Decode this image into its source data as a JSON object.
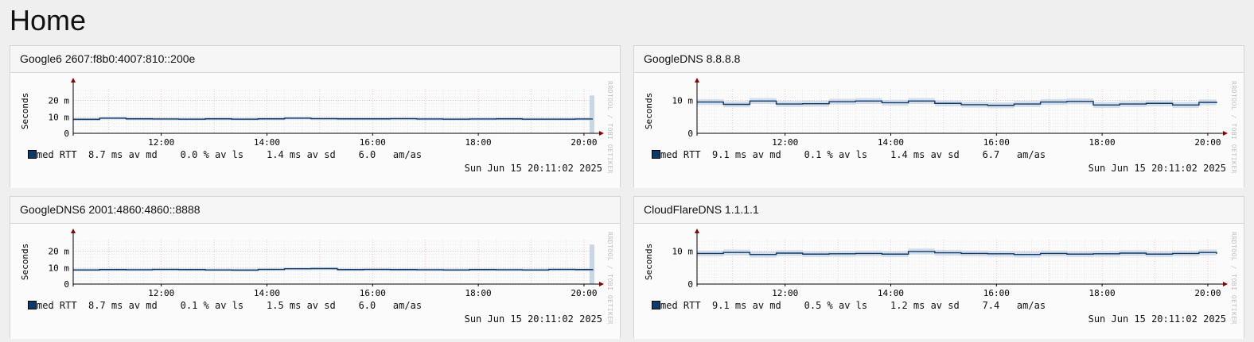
{
  "page": {
    "title": "Home"
  },
  "watermark": "RRDTOOL / TOBI OETIKER",
  "colors": {
    "median": "#0c3a6b",
    "smoke": "#c8d6e6",
    "grid_major": "#f2a6a6",
    "grid_minor": "#dddddd",
    "axis": "#000000",
    "arrow": "#8b0000"
  },
  "chart_data": [
    {
      "type": "line",
      "title": "Google6 2607:f8b0:4007:810::200e",
      "ylabel": "Seconds",
      "ylim": [
        0,
        27
      ],
      "y_ticks": [
        0,
        10,
        20
      ],
      "y_tick_labels": [
        "0",
        "10 m",
        "20 m"
      ],
      "x_range": [
        "10:20",
        "20:10"
      ],
      "x_ticks": [
        "12:00",
        "14:00",
        "16:00",
        "18:00",
        "20:00"
      ],
      "series": [
        {
          "name": "med RTT",
          "x": [
            "10:20",
            "10:50",
            "11:20",
            "11:50",
            "12:20",
            "12:50",
            "13:20",
            "13:50",
            "14:20",
            "14:50",
            "15:20",
            "15:50",
            "16:20",
            "16:50",
            "17:20",
            "17:50",
            "18:20",
            "18:50",
            "19:20",
            "19:50",
            "20:10"
          ],
          "values": [
            8.5,
            9.2,
            8.8,
            8.7,
            8.6,
            8.8,
            8.6,
            8.8,
            9.2,
            8.9,
            8.8,
            8.8,
            8.9,
            8.7,
            8.6,
            8.7,
            8.8,
            8.6,
            8.6,
            8.7,
            8.7
          ]
        }
      ],
      "spike_end": 23,
      "legend": {
        "label": "med RTT",
        "stats": "  8.7 ms av md    0.0 % av ls    1.4 ms av sd    6.0   am/as"
      },
      "timestamp": "Sun Jun 15 20:11:02 2025"
    },
    {
      "type": "line",
      "title": "GoogleDNS 8.8.8.8",
      "ylabel": "Seconds",
      "ylim": [
        0,
        13.5
      ],
      "y_ticks": [
        0,
        10
      ],
      "y_tick_labels": [
        "0",
        "10 m"
      ],
      "x_range": [
        "10:20",
        "20:10"
      ],
      "x_ticks": [
        "12:00",
        "14:00",
        "16:00",
        "18:00",
        "20:00"
      ],
      "series": [
        {
          "name": "med RTT",
          "x": [
            "10:20",
            "10:50",
            "11:20",
            "11:50",
            "12:20",
            "12:50",
            "13:20",
            "13:50",
            "14:20",
            "14:50",
            "15:20",
            "15:50",
            "16:20",
            "16:50",
            "17:20",
            "17:50",
            "18:20",
            "18:50",
            "19:20",
            "19:50",
            "20:10"
          ],
          "values": [
            9.5,
            8.8,
            9.8,
            8.9,
            9.0,
            9.6,
            9.8,
            9.3,
            9.8,
            9.1,
            8.7,
            8.5,
            8.9,
            9.5,
            9.7,
            8.6,
            8.9,
            9.1,
            8.6,
            9.4,
            9.2
          ]
        }
      ],
      "legend": {
        "label": "med RTT",
        "stats": "  9.1 ms av md    0.1 % av ls    1.4 ms av sd    6.7   am/as"
      },
      "timestamp": "Sun Jun 15 20:11:02 2025"
    },
    {
      "type": "line",
      "title": "GoogleDNS6 2001:4860:4860::8888",
      "ylabel": "Seconds",
      "ylim": [
        0,
        27
      ],
      "y_ticks": [
        0,
        10,
        20
      ],
      "y_tick_labels": [
        "0",
        "10 m",
        "20 m"
      ],
      "x_range": [
        "10:20",
        "20:10"
      ],
      "x_ticks": [
        "12:00",
        "14:00",
        "16:00",
        "18:00",
        "20:00"
      ],
      "series": [
        {
          "name": "med RTT",
          "x": [
            "10:20",
            "10:50",
            "11:20",
            "11:50",
            "12:20",
            "12:50",
            "13:20",
            "13:50",
            "14:20",
            "14:50",
            "15:20",
            "15:50",
            "16:20",
            "16:50",
            "17:20",
            "17:50",
            "18:20",
            "18:50",
            "19:20",
            "19:50",
            "20:10"
          ],
          "values": [
            8.6,
            8.8,
            8.7,
            8.9,
            8.8,
            8.6,
            8.5,
            8.9,
            9.3,
            9.4,
            8.8,
            8.9,
            8.8,
            8.7,
            8.6,
            8.8,
            8.7,
            8.6,
            8.9,
            8.8,
            9.0
          ]
        }
      ],
      "spike_end": 24,
      "legend": {
        "label": "med RTT",
        "stats": "  8.7 ms av md    0.1 % av ls    1.5 ms av sd    6.0   am/as"
      },
      "timestamp": "Sun Jun 15 20:11:02 2025"
    },
    {
      "type": "line",
      "title": "CloudFlareDNS 1.1.1.1",
      "ylabel": "Seconds",
      "ylim": [
        0,
        13.5
      ],
      "y_ticks": [
        0,
        10
      ],
      "y_tick_labels": [
        "0",
        "10 m"
      ],
      "x_range": [
        "10:20",
        "20:10"
      ],
      "x_ticks": [
        "12:00",
        "14:00",
        "16:00",
        "18:00",
        "20:00"
      ],
      "series": [
        {
          "name": "med RTT",
          "x": [
            "10:20",
            "10:50",
            "11:20",
            "11:50",
            "12:20",
            "12:50",
            "13:20",
            "13:50",
            "14:20",
            "14:50",
            "15:20",
            "15:50",
            "16:20",
            "16:50",
            "17:20",
            "17:50",
            "18:20",
            "18:50",
            "19:20",
            "19:50",
            "20:10"
          ],
          "values": [
            9.3,
            9.6,
            9.0,
            9.4,
            9.1,
            9.2,
            9.3,
            9.1,
            9.9,
            9.5,
            9.3,
            9.2,
            9.0,
            9.3,
            9.1,
            9.2,
            9.4,
            9.1,
            9.3,
            9.6,
            9.2
          ]
        }
      ],
      "legend": {
        "label": "med RTT",
        "stats": "  9.1 ms av md    0.5 % av ls    1.2 ms av sd    7.4   am/as"
      },
      "timestamp": "Sun Jun 15 20:11:02 2025"
    }
  ]
}
